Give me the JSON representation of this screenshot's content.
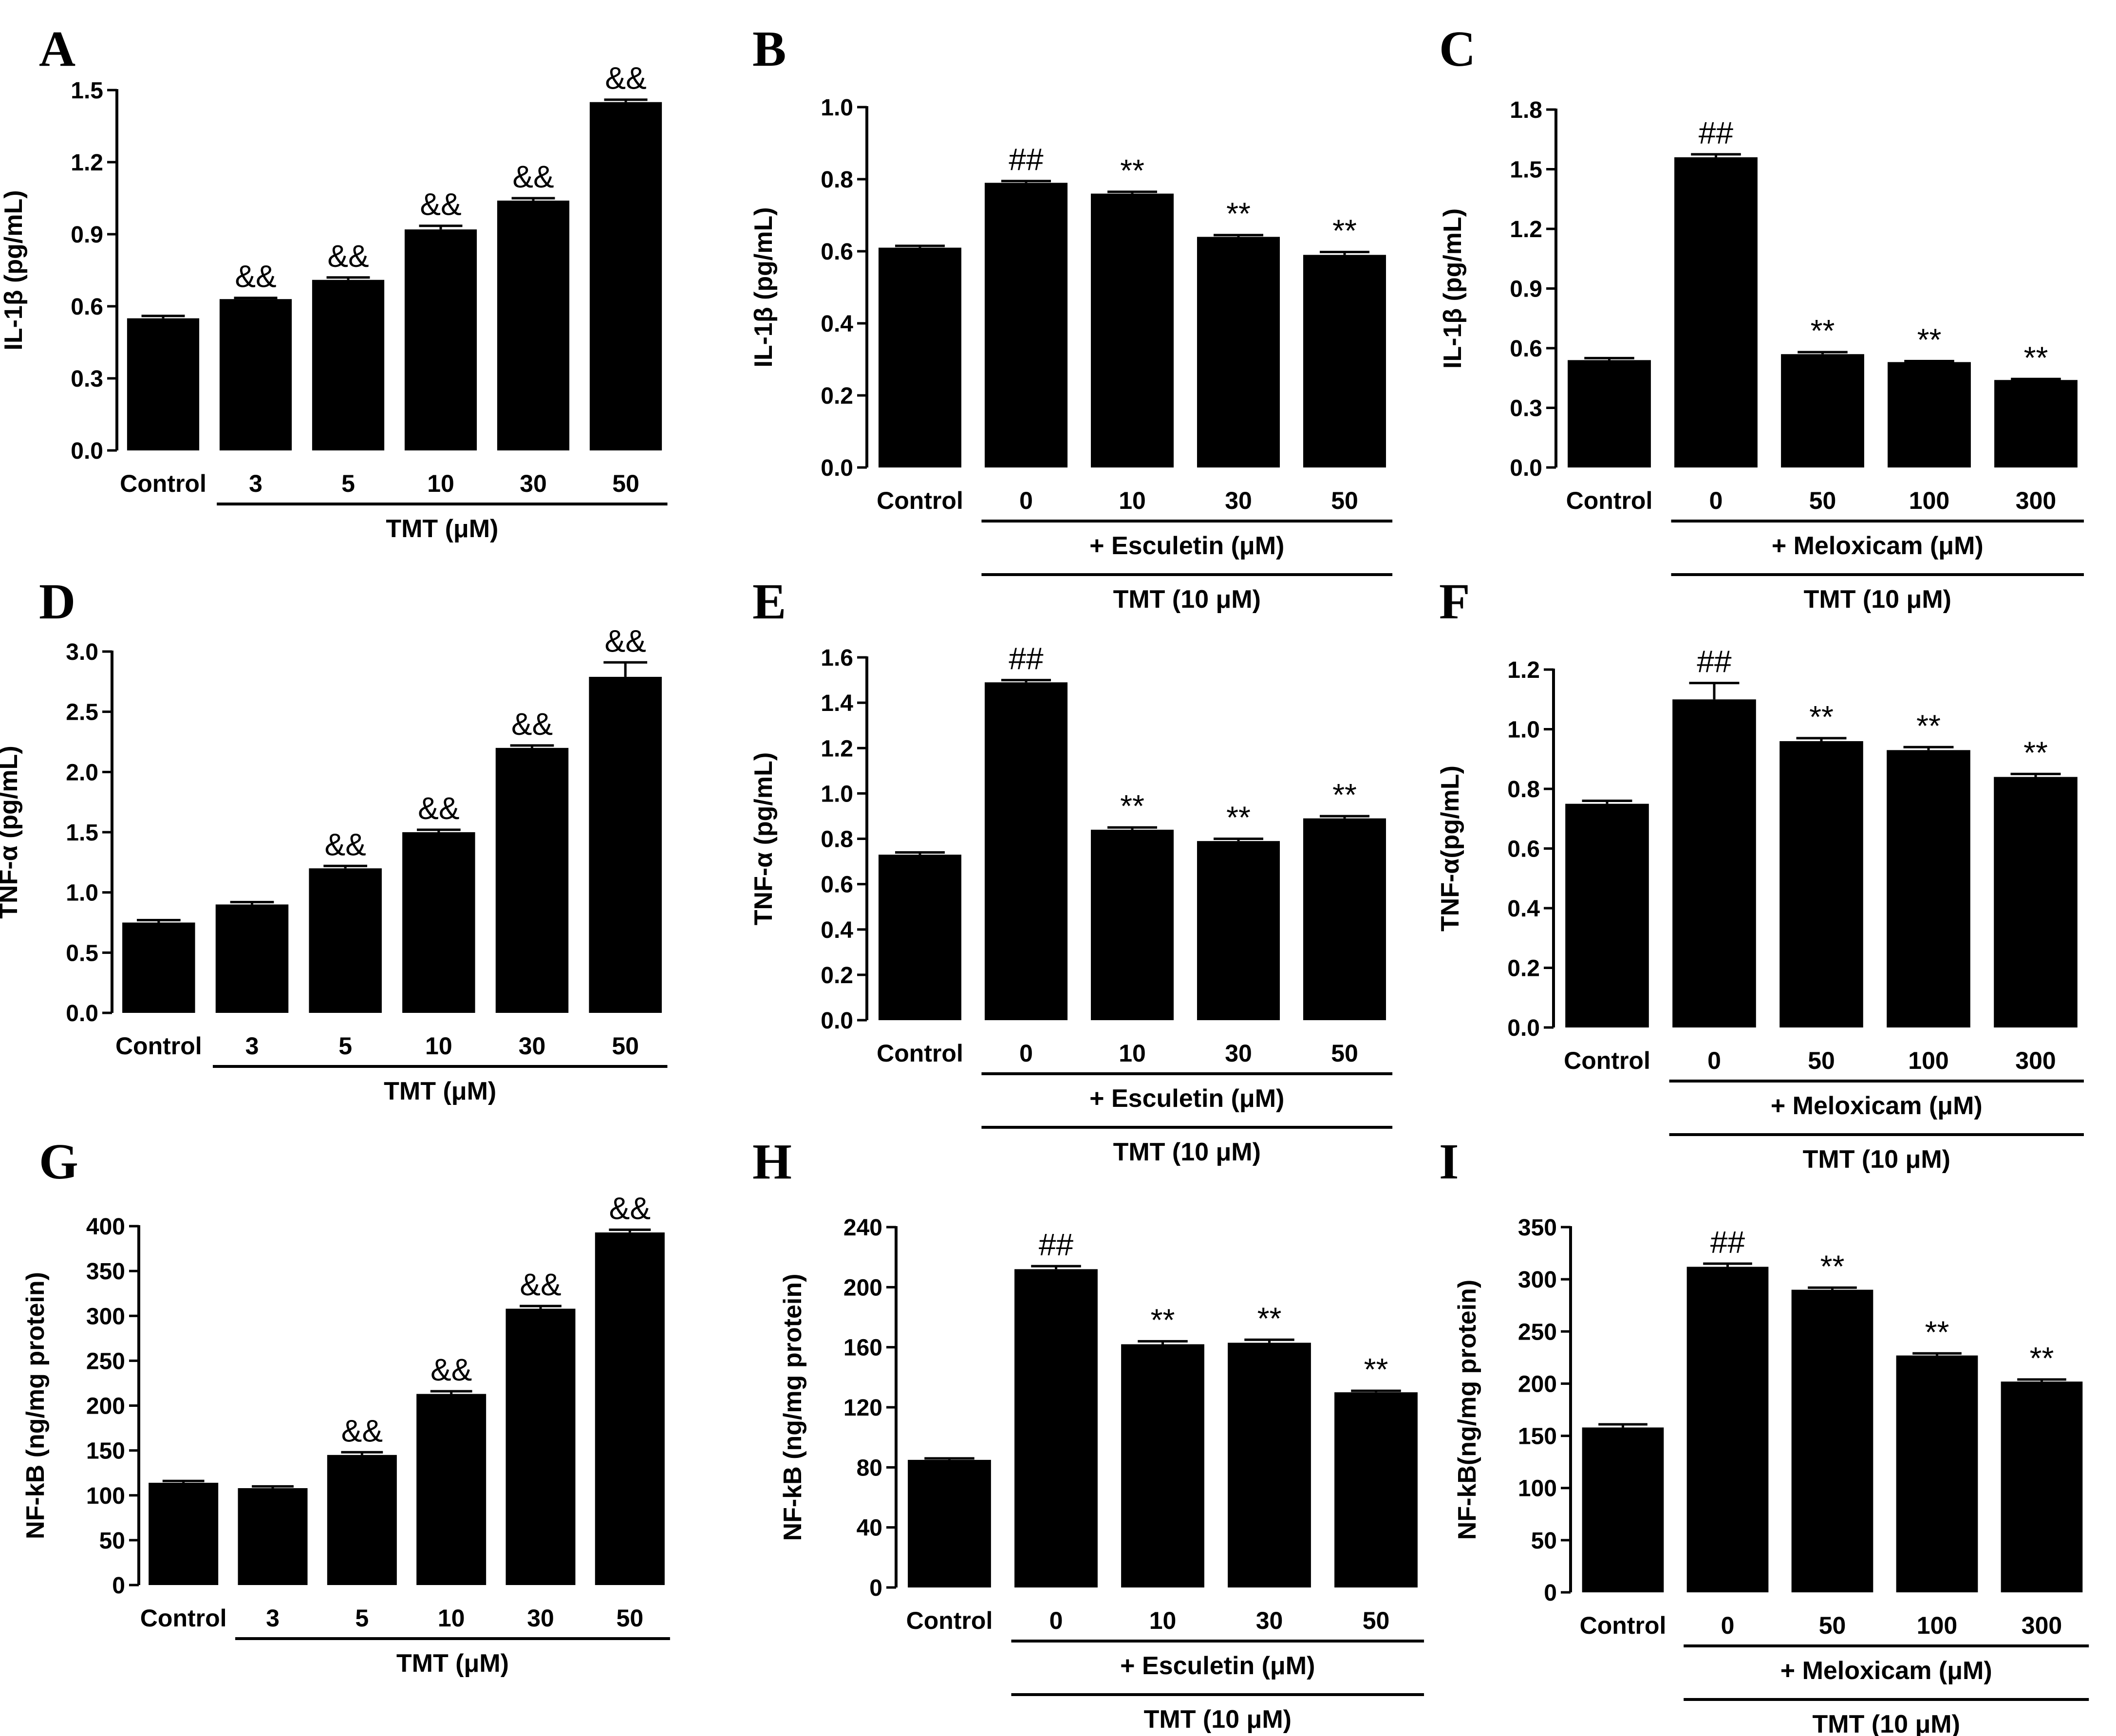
{
  "chart_data": [
    {
      "panel": "A",
      "type": "bar",
      "ylabel": "IL-1β (pg/mL)",
      "ylim": [
        0,
        1.5
      ],
      "yticks": [
        "0.0",
        "0.3",
        "0.6",
        "0.9",
        "1.2",
        "1.5"
      ],
      "categories": [
        "Control",
        "3",
        "5",
        "10",
        "30",
        "50"
      ],
      "values": [
        0.55,
        0.63,
        0.71,
        0.92,
        1.04,
        1.45
      ],
      "errors": [
        0.01,
        0.005,
        0.01,
        0.015,
        0.01,
        0.01
      ],
      "significance": [
        "",
        "&&",
        "&&",
        "&&",
        "&&",
        "&&"
      ],
      "groups": [
        {
          "label": "TMT (μM)",
          "from": 1,
          "to": 5
        }
      ]
    },
    {
      "panel": "B",
      "type": "bar",
      "ylabel": "IL-1β (pg/mL)",
      "ylim": [
        0,
        1.0
      ],
      "yticks": [
        "0.0",
        "0.2",
        "0.4",
        "0.6",
        "0.8",
        "1.0"
      ],
      "categories": [
        "Control",
        "0",
        "10",
        "30",
        "50"
      ],
      "values": [
        0.61,
        0.79,
        0.76,
        0.64,
        0.59
      ],
      "errors": [
        0.005,
        0.005,
        0.005,
        0.005,
        0.008
      ],
      "significance": [
        "",
        "##",
        "**",
        "**",
        "**"
      ],
      "groups": [
        {
          "label": "+ Esculetin (μM)",
          "from": 1,
          "to": 4
        },
        {
          "label": "TMT (10 μM)",
          "from": 1,
          "to": 4
        }
      ]
    },
    {
      "panel": "C",
      "type": "bar",
      "ylabel": "IL-1β (pg/mL)",
      "ylim": [
        0,
        1.8
      ],
      "yticks": [
        "0.0",
        "0.3",
        "0.6",
        "0.9",
        "1.2",
        "1.5",
        "1.8"
      ],
      "categories": [
        "Control",
        "0",
        "50",
        "100",
        "300"
      ],
      "values": [
        0.54,
        1.56,
        0.57,
        0.53,
        0.44
      ],
      "errors": [
        0.01,
        0.015,
        0.01,
        0.005,
        0.005
      ],
      "significance": [
        "",
        "##",
        "**",
        "**",
        "**"
      ],
      "groups": [
        {
          "label": "+ Meloxicam (μM)",
          "from": 1,
          "to": 4
        },
        {
          "label": "TMT (10 μM)",
          "from": 1,
          "to": 4
        }
      ]
    },
    {
      "panel": "D",
      "type": "bar",
      "ylabel": "TNF-α (pg/mL)",
      "ylim": [
        0,
        3.0
      ],
      "yticks": [
        "0.0",
        "0.5",
        "1.0",
        "1.5",
        "2.0",
        "2.5",
        "3.0"
      ],
      "categories": [
        "Control",
        "3",
        "5",
        "10",
        "30",
        "50"
      ],
      "values": [
        0.75,
        0.9,
        1.2,
        1.5,
        2.2,
        2.79
      ],
      "errors": [
        0.02,
        0.02,
        0.02,
        0.02,
        0.02,
        0.12
      ],
      "significance": [
        "",
        "",
        "&&",
        "&&",
        "&&",
        "&&"
      ],
      "groups": [
        {
          "label": "TMT (μM)",
          "from": 1,
          "to": 5
        }
      ]
    },
    {
      "panel": "E",
      "type": "bar",
      "ylabel": "TNF-α (pg/mL)",
      "ylim": [
        0,
        1.6
      ],
      "yticks": [
        "0.0",
        "0.2",
        "0.4",
        "0.6",
        "0.8",
        "1.0",
        "1.2",
        "1.4",
        "1.6"
      ],
      "categories": [
        "Control",
        "0",
        "10",
        "30",
        "50"
      ],
      "values": [
        0.73,
        1.49,
        0.84,
        0.79,
        0.89
      ],
      "errors": [
        0.01,
        0.01,
        0.01,
        0.01,
        0.01
      ],
      "significance": [
        "",
        "##",
        "**",
        "**",
        "**"
      ],
      "groups": [
        {
          "label": "+ Esculetin (μM)",
          "from": 1,
          "to": 4
        },
        {
          "label": "TMT (10 μM)",
          "from": 1,
          "to": 4
        }
      ]
    },
    {
      "panel": "F",
      "type": "bar",
      "ylabel": "TNF-α(pg/mL)",
      "ylim": [
        0,
        1.2
      ],
      "yticks": [
        "0.0",
        "0.2",
        "0.4",
        "0.6",
        "0.8",
        "1.0",
        "1.2"
      ],
      "categories": [
        "Control",
        "0",
        "50",
        "100",
        "300"
      ],
      "values": [
        0.75,
        1.1,
        0.96,
        0.93,
        0.84
      ],
      "errors": [
        0.01,
        0.055,
        0.01,
        0.01,
        0.01
      ],
      "significance": [
        "",
        "##",
        "**",
        "**",
        "**"
      ],
      "groups": [
        {
          "label": "+ Meloxicam (μM)",
          "from": 1,
          "to": 4
        },
        {
          "label": "TMT (10 μM)",
          "from": 1,
          "to": 4
        }
      ]
    },
    {
      "panel": "G",
      "type": "bar",
      "ylabel": "NF-kB (ng/mg protein)",
      "ylim": [
        0,
        400
      ],
      "yticks": [
        "0",
        "50",
        "100",
        "150",
        "200",
        "250",
        "300",
        "350",
        "400"
      ],
      "categories": [
        "Control",
        "3",
        "5",
        "10",
        "30",
        "50"
      ],
      "values": [
        114,
        108,
        145,
        213,
        308,
        393
      ],
      "errors": [
        2,
        2,
        3,
        3,
        3,
        3
      ],
      "significance": [
        "",
        "",
        "&&",
        "&&",
        "&&",
        "&&"
      ],
      "groups": [
        {
          "label": "TMT (μM)",
          "from": 1,
          "to": 5
        }
      ]
    },
    {
      "panel": "H",
      "type": "bar",
      "ylabel": "NF-kB (ng/mg protein)",
      "ylim": [
        0,
        240
      ],
      "yticks": [
        "0",
        "40",
        "80",
        "120",
        "160",
        "200",
        "240"
      ],
      "categories": [
        "Control",
        "0",
        "10",
        "30",
        "50"
      ],
      "values": [
        85,
        212,
        162,
        163,
        130
      ],
      "errors": [
        1,
        2,
        2,
        2,
        1
      ],
      "significance": [
        "",
        "##",
        "**",
        "**",
        "**"
      ],
      "groups": [
        {
          "label": "+ Esculetin (μM)",
          "from": 1,
          "to": 4
        },
        {
          "label": "TMT (10 μM)",
          "from": 1,
          "to": 4
        }
      ]
    },
    {
      "panel": "I",
      "type": "bar",
      "ylabel": "NF-kB(ng/mg protein)",
      "ylim": [
        0,
        350
      ],
      "yticks": [
        "0",
        "50",
        "100",
        "150",
        "200",
        "250",
        "300",
        "350"
      ],
      "categories": [
        "Control",
        "0",
        "50",
        "100",
        "300"
      ],
      "values": [
        158,
        312,
        290,
        227,
        202
      ],
      "errors": [
        3,
        3,
        2,
        2,
        2
      ],
      "significance": [
        "",
        "##",
        "**",
        "**",
        "**"
      ],
      "groups": [
        {
          "label": "+ Meloxicam (μM)",
          "from": 1,
          "to": 4
        },
        {
          "label": "TMT (10 μM)",
          "from": 1,
          "to": 4
        }
      ]
    }
  ]
}
